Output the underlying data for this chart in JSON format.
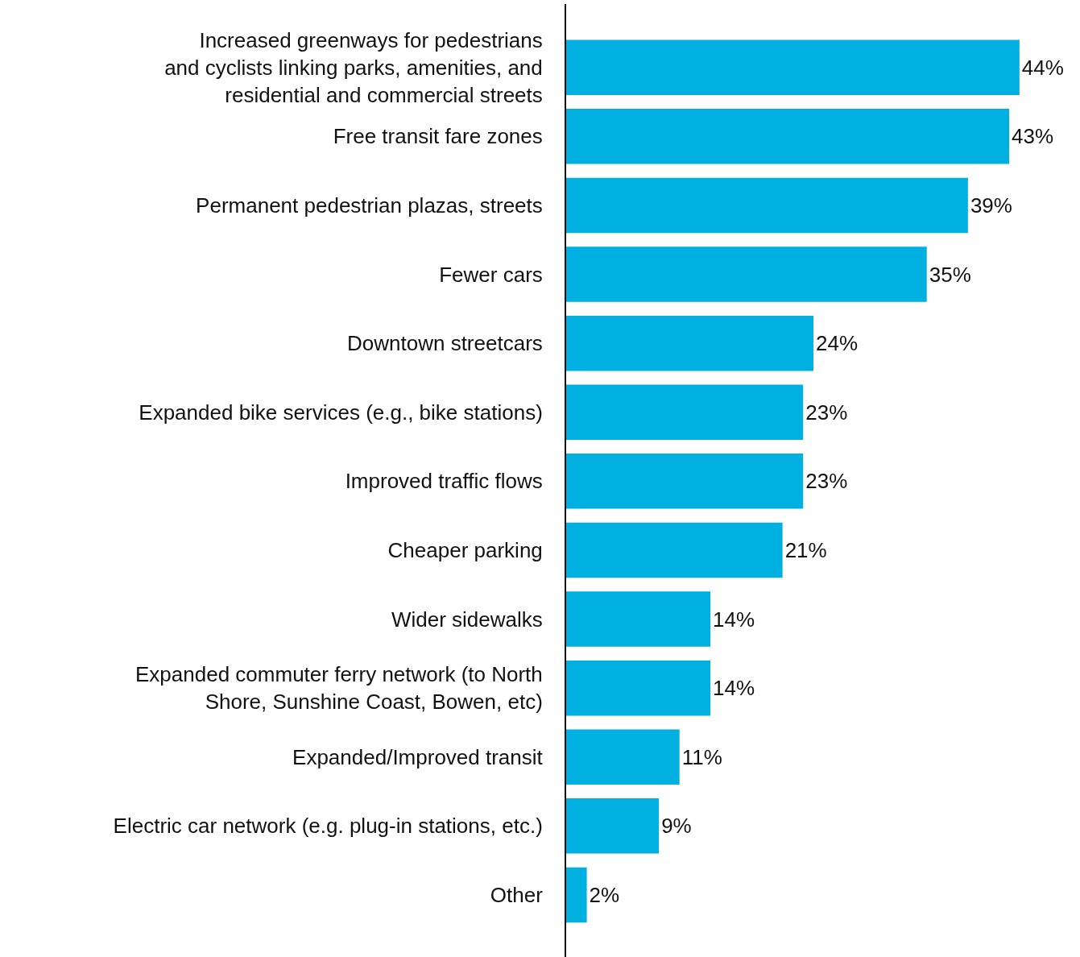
{
  "chart_data": {
    "type": "bar",
    "orientation": "horizontal",
    "data_labels": true,
    "color": "#00b0e0",
    "categories": [
      "Increased greenways for pedestrians\nand cyclists linking parks, amenities, and\nresidential and commercial streets",
      "Free transit fare zones",
      "Permanent pedestrian plazas, streets",
      "Fewer cars",
      "Downtown streetcars",
      "Expanded bike services (e.g., bike stations)",
      "Improved traffic flows",
      "Cheaper parking",
      "Wider sidewalks",
      "Expanded commuter ferry network (to North\nShore, Sunshine Coast, Bowen, etc)",
      "Expanded/Improved transit",
      "Electric car network (e.g. plug-in stations, etc.)",
      "Other"
    ],
    "values": [
      44,
      43,
      39,
      35,
      24,
      23,
      23,
      21,
      14,
      14,
      11,
      9,
      2
    ],
    "value_labels": [
      "44%",
      "43%",
      "39%",
      "35%",
      "24%",
      "23%",
      "23%",
      "21%",
      "14%",
      "14%",
      "11%",
      "9%",
      "2%"
    ]
  }
}
